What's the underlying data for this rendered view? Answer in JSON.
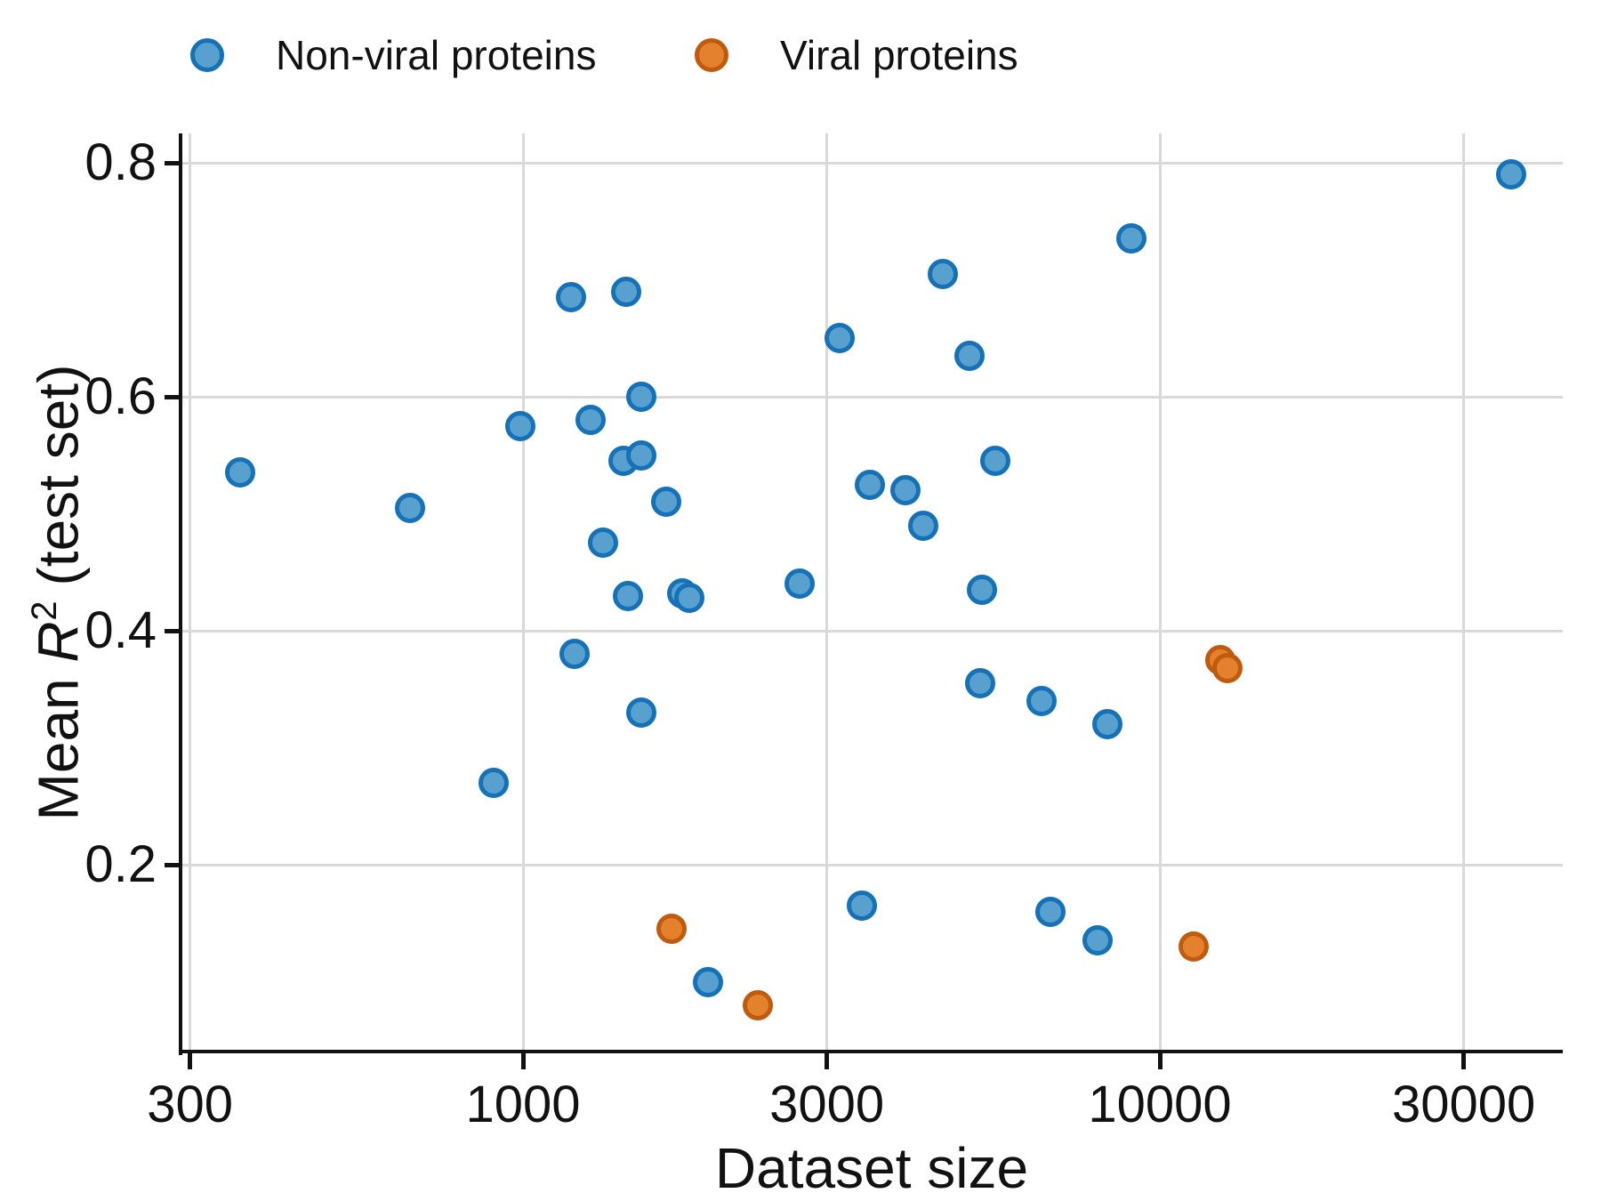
{
  "legend": {
    "items": [
      {
        "id": "non-viral",
        "label": "Non-viral proteins"
      },
      {
        "id": "viral",
        "label": "Viral proteins"
      }
    ]
  },
  "axes": {
    "xlabel": "Dataset size",
    "ylabel": {
      "prefix": "Mean ",
      "variable": "R",
      "superscript": "2",
      "suffix": " (test set)"
    }
  },
  "chart_data": {
    "type": "scatter",
    "title": "",
    "xlabel": "Dataset size",
    "ylabel": "Mean R^2 (test set)",
    "xscale": "log",
    "yscale": "linear",
    "xlim": [
      290,
      43000
    ],
    "ylim": [
      0.03,
      0.83
    ],
    "x_ticks": [
      300,
      1000,
      3000,
      10000,
      30000
    ],
    "y_ticks": [
      0.2,
      0.4,
      0.6,
      0.8
    ],
    "grid": true,
    "legend_position": "top-left-above-axes",
    "series": [
      {
        "name": "Non-viral proteins",
        "marker": "circle",
        "fill": "#58a0cd",
        "edge": "#1572b8",
        "points": [
          [
            360,
            0.535
          ],
          [
            665,
            0.505
          ],
          [
            900,
            0.27
          ],
          [
            990,
            0.575
          ],
          [
            1190,
            0.685
          ],
          [
            1205,
            0.38
          ],
          [
            1275,
            0.58
          ],
          [
            1335,
            0.475
          ],
          [
            1440,
            0.545
          ],
          [
            1450,
            0.69
          ],
          [
            1460,
            0.43
          ],
          [
            1535,
            0.6
          ],
          [
            1535,
            0.55
          ],
          [
            1535,
            0.33
          ],
          [
            1680,
            0.51
          ],
          [
            1780,
            0.432
          ],
          [
            1825,
            0.428
          ],
          [
            1950,
            0.1
          ],
          [
            2715,
            0.44
          ],
          [
            3140,
            0.65
          ],
          [
            3410,
            0.165
          ],
          [
            3510,
            0.525
          ],
          [
            3980,
            0.52
          ],
          [
            4250,
            0.49
          ],
          [
            4560,
            0.705
          ],
          [
            5030,
            0.635
          ],
          [
            5230,
            0.355
          ],
          [
            5250,
            0.435
          ],
          [
            5510,
            0.545
          ],
          [
            6510,
            0.34
          ],
          [
            6740,
            0.16
          ],
          [
            7980,
            0.135
          ],
          [
            8260,
            0.32
          ],
          [
            9020,
            0.735
          ],
          [
            35600,
            0.79
          ]
        ]
      },
      {
        "name": "Viral proteins",
        "marker": "circle",
        "fill": "#e4812c",
        "edge": "#c05a0e",
        "points": [
          [
            1710,
            0.145
          ],
          [
            2340,
            0.08
          ],
          [
            11300,
            0.13
          ],
          [
            12440,
            0.375
          ],
          [
            12760,
            0.368
          ]
        ]
      }
    ]
  },
  "colors": {
    "background": "#ffffff",
    "grid": "#d9d9d9",
    "spine": "#111111",
    "blue_fill": "#58a0cd",
    "blue_edge": "#1572b8",
    "orange_fill": "#e4812c",
    "orange_edge": "#c05a0e"
  }
}
